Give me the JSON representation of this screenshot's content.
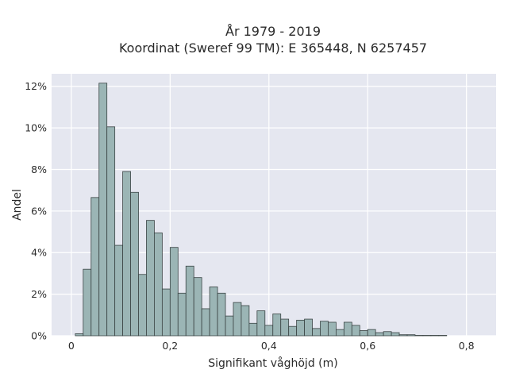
{
  "chart_data": {
    "type": "bar",
    "title_lines": [
      "År 1979 - 2019",
      "Koordinat (Sweref 99 TM): E 365448, N 6257457"
    ],
    "xlabel": "Signifikant våghöjd (m)",
    "ylabel": "Andel",
    "xlim": [
      -0.04,
      0.86
    ],
    "ylim": [
      0,
      12.6
    ],
    "x_ticks": [
      0,
      0.2,
      0.4,
      0.6,
      0.8
    ],
    "x_tick_labels": [
      "0",
      "0,2",
      "0,4",
      "0,6",
      "0,8"
    ],
    "y_ticks": [
      0,
      2,
      4,
      6,
      8,
      10,
      12
    ],
    "y_tick_labels": [
      "0%",
      "2%",
      "4%",
      "6%",
      "8%",
      "10%",
      "12%"
    ],
    "grid": true,
    "bin_width": 0.016,
    "bin_start": 0.008,
    "values": [
      0.1,
      3.2,
      6.65,
      12.15,
      10.05,
      4.35,
      7.9,
      6.9,
      2.95,
      5.55,
      4.95,
      2.25,
      4.25,
      2.05,
      3.35,
      2.8,
      1.3,
      2.35,
      2.05,
      0.95,
      1.6,
      1.45,
      0.6,
      1.2,
      0.5,
      1.05,
      0.8,
      0.45,
      0.75,
      0.8,
      0.35,
      0.7,
      0.65,
      0.3,
      0.65,
      0.5,
      0.25,
      0.3,
      0.15,
      0.2,
      0.15,
      0.05,
      0.05,
      0.02,
      0.02,
      0.02,
      0.02
    ],
    "colors": {
      "bar_fill": "#9bb5b5",
      "bar_edge": "#3a4444",
      "plot_bg": "#e5e7f0",
      "grid": "#ffffff"
    }
  }
}
